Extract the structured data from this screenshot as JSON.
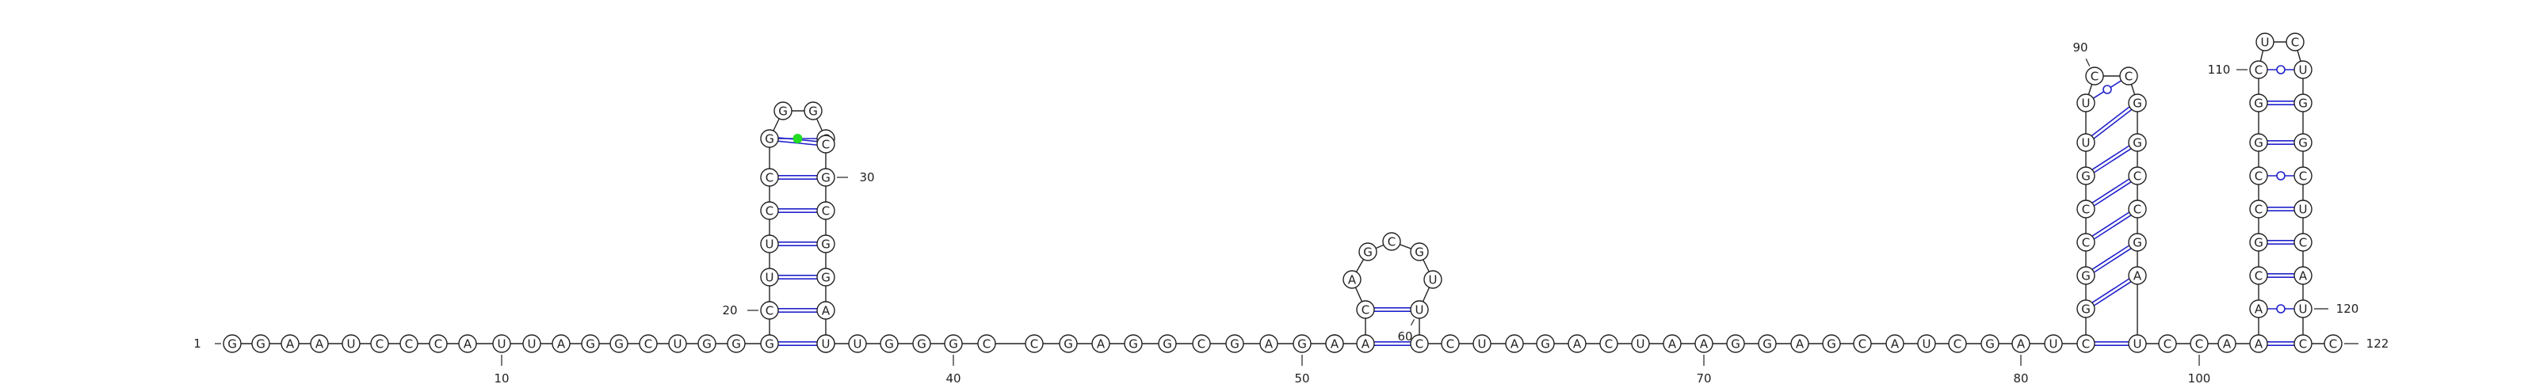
{
  "sequence": "GGAAUCCCAUUAGGCUGGGCUUCCGGGCCGCGGAGUUGGGCCGAGGCGAGCAACAGCGUUCCUAGACUAAGGAGCAUCGAUCGGCCGUUCCGGCCGAUCCAAACGCCGGCUCUGGCUCAUCC",
  "numbering": {
    "first": "1",
    "last": "122",
    "marks": [
      "10",
      "20",
      "30",
      "40",
      "50",
      "60",
      "70",
      "80",
      "90",
      "100",
      "110",
      "120"
    ]
  },
  "colors": {
    "backbone": "#222222",
    "watson_crick_pair": "#2222cc",
    "wobble_pair_marker": "#2222cc",
    "noncanonical_pair_marker": "#22dd22"
  },
  "pair_types": {
    "watson_crick": "double line",
    "wobble_GU": "single line with open circle",
    "noncanonical": "single line with filled green circle"
  }
}
